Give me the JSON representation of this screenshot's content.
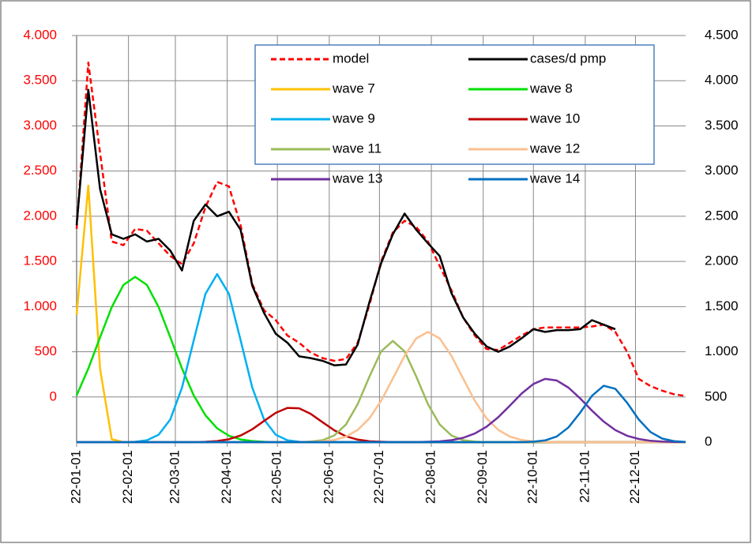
{
  "chart_data": {
    "type": "line",
    "x": [
      0,
      7,
      14,
      21,
      28,
      35,
      42,
      49,
      56,
      63,
      70,
      77,
      84,
      91,
      98,
      105,
      112,
      119,
      126,
      133,
      140,
      147,
      154,
      161,
      168,
      175,
      182,
      189,
      196,
      203,
      210,
      217,
      224,
      231,
      238,
      245,
      252,
      259,
      266,
      273,
      280,
      287,
      294,
      301,
      308,
      315,
      322,
      329,
      336,
      343,
      350,
      357,
      364
    ],
    "xlim": [
      0,
      364
    ],
    "xticks": [
      {
        "value": 0,
        "label": "22-01-01"
      },
      {
        "value": 31,
        "label": "22-02-01"
      },
      {
        "value": 59,
        "label": "22-03-01"
      },
      {
        "value": 90,
        "label": "22-04-01"
      },
      {
        "value": 120,
        "label": "22-05-01"
      },
      {
        "value": 151,
        "label": "22-06-01"
      },
      {
        "value": 181,
        "label": "22-07-01"
      },
      {
        "value": 212,
        "label": "22-08-01"
      },
      {
        "value": 243,
        "label": "22-09-01"
      },
      {
        "value": 273,
        "label": "22-10-01"
      },
      {
        "value": 304,
        "label": "22-11-01"
      },
      {
        "value": 334,
        "label": "22-12-01"
      }
    ],
    "ylim": [
      -500,
      4000
    ],
    "yticks": [
      0,
      500,
      {
        "value": 1000,
        "label": "1.000"
      },
      {
        "value": 1500,
        "label": "1.500"
      },
      {
        "value": 2000,
        "label": "2.000"
      },
      {
        "value": 2500,
        "label": "2.500"
      },
      {
        "value": 3000,
        "label": "3.000"
      },
      {
        "value": 3500,
        "label": "3.500"
      },
      {
        "value": 4000,
        "label": "4.000"
      }
    ],
    "y2lim": [
      0,
      4500
    ],
    "y2ticks": [
      0,
      500,
      {
        "value": 1000,
        "label": "1.000"
      },
      {
        "value": 1500,
        "label": "1.500"
      },
      {
        "value": 2000,
        "label": "2.000"
      },
      {
        "value": 2500,
        "label": "2.500"
      },
      {
        "value": 3000,
        "label": "3.000"
      },
      {
        "value": 3500,
        "label": "3.500"
      },
      {
        "value": 4000,
        "label": "4.000"
      },
      {
        "value": 4500,
        "label": "4.500"
      }
    ],
    "ytick_color": "#ff0000",
    "grid": true,
    "series": [
      {
        "name": "model",
        "color": "#ff0000",
        "dashed": true,
        "values": [
          1860,
          3700,
          2700,
          1720,
          1680,
          1860,
          1840,
          1700,
          1560,
          1470,
          1700,
          2100,
          2380,
          2330,
          1900,
          1250,
          960,
          850,
          680,
          600,
          490,
          430,
          400,
          420,
          600,
          1020,
          1500,
          1820,
          1950,
          1880,
          1720,
          1450,
          1180,
          880,
          680,
          530,
          520,
          600,
          680,
          750,
          770,
          770,
          770,
          770,
          780,
          800,
          720,
          500,
          200,
          120,
          70,
          30,
          10
        ]
      },
      {
        "name": "cases/d pmp",
        "color": "#000000",
        "values": [
          1900,
          3400,
          2300,
          1800,
          1750,
          1800,
          1720,
          1750,
          1620,
          1400,
          1950,
          2130,
          2000,
          2050,
          1850,
          1230,
          930,
          700,
          600,
          450,
          430,
          400,
          350,
          360,
          580,
          1050,
          1480,
          1800,
          2030,
          1850,
          1700,
          1560,
          1150,
          880,
          700,
          560,
          500,
          560,
          650,
          750,
          720,
          740,
          740,
          750,
          850,
          800,
          750,
          null,
          null,
          null,
          null,
          null,
          null
        ]
      },
      {
        "name": "wave 7",
        "color": "#ffc000",
        "axis": "y2",
        "values": [
          1410,
          2840,
          810,
          32,
          0,
          0,
          0,
          0,
          0,
          0,
          0,
          0,
          0,
          0,
          0,
          0,
          0,
          0,
          0,
          0,
          0,
          0,
          0,
          0,
          0,
          0,
          0,
          0,
          0,
          0,
          0,
          0,
          0,
          0,
          0,
          0,
          0,
          0,
          0,
          0,
          0,
          0,
          0,
          0,
          0,
          0,
          0,
          0,
          0,
          0,
          0,
          0,
          0
        ]
      },
      {
        "name": "wave 8",
        "color": "#00e000",
        "axis": "y2",
        "values": [
          516,
          814,
          1160,
          1495,
          1740,
          1830,
          1740,
          1495,
          1160,
          814,
          516,
          297,
          153,
          71,
          30,
          12,
          4,
          0,
          0,
          0,
          0,
          0,
          0,
          0,
          0,
          0,
          0,
          0,
          0,
          0,
          0,
          0,
          0,
          0,
          0,
          0,
          0,
          0,
          0,
          0,
          0,
          0,
          0,
          0,
          0,
          0,
          0,
          0,
          0,
          0,
          0,
          0,
          0
        ]
      },
      {
        "name": "wave 9",
        "color": "#00b0f0",
        "axis": "y2",
        "values": [
          0,
          0,
          0,
          0,
          0,
          4,
          21,
          82,
          252,
          604,
          1128,
          1641,
          1860,
          1641,
          1128,
          604,
          252,
          82,
          21,
          4,
          0,
          0,
          0,
          0,
          0,
          0,
          0,
          0,
          0,
          0,
          0,
          0,
          0,
          0,
          0,
          0,
          0,
          0,
          0,
          0,
          0,
          0,
          0,
          0,
          0,
          0,
          0,
          0,
          0,
          0,
          0,
          0,
          0
        ]
      },
      {
        "name": "wave 10",
        "color": "#c00000",
        "axis": "y2",
        "values": [
          0,
          0,
          0,
          0,
          0,
          0,
          0,
          0,
          0,
          0,
          0,
          4,
          12,
          32,
          73,
          142,
          234,
          324,
          379,
          375,
          312,
          220,
          131,
          65,
          28,
          10,
          4,
          0,
          0,
          0,
          0,
          0,
          0,
          0,
          0,
          0,
          0,
          0,
          0,
          0,
          0,
          0,
          0,
          0,
          0,
          0,
          0,
          0,
          0,
          0,
          0,
          0,
          0
        ]
      },
      {
        "name": "wave 11",
        "color": "#9bbb59",
        "axis": "y2",
        "values": [
          0,
          0,
          0,
          0,
          0,
          0,
          0,
          0,
          0,
          0,
          0,
          0,
          0,
          0,
          0,
          0,
          0,
          0,
          0,
          0,
          6,
          22,
          74,
          196,
          420,
          725,
          1005,
          1120,
          1005,
          725,
          420,
          196,
          74,
          22,
          6,
          0,
          0,
          0,
          0,
          0,
          0,
          0,
          0,
          0,
          0,
          0,
          0,
          0,
          0,
          0,
          0,
          0,
          0
        ]
      },
      {
        "name": "wave 12",
        "color": "#fac090",
        "axis": "y2",
        "values": [
          0,
          0,
          0,
          0,
          0,
          0,
          0,
          0,
          0,
          0,
          0,
          0,
          0,
          0,
          0,
          0,
          0,
          0,
          0,
          0,
          3,
          9,
          24,
          61,
          135,
          264,
          458,
          703,
          955,
          1148,
          1220,
          1148,
          955,
          703,
          458,
          264,
          135,
          61,
          24,
          9,
          3,
          0,
          0,
          0,
          0,
          0,
          0,
          0,
          0,
          0,
          0,
          0,
          0
        ]
      },
      {
        "name": "wave 13",
        "color": "#7030a0",
        "axis": "y2",
        "values": [
          0,
          0,
          0,
          0,
          0,
          0,
          0,
          0,
          0,
          0,
          0,
          0,
          0,
          0,
          0,
          0,
          0,
          0,
          0,
          0,
          0,
          0,
          0,
          0,
          0,
          0,
          0,
          0,
          0,
          0,
          4,
          9,
          22,
          48,
          95,
          170,
          276,
          405,
          538,
          644,
          700,
          682,
          603,
          483,
          349,
          228,
          134,
          71,
          35,
          15,
          6,
          2,
          1
        ]
      },
      {
        "name": "wave 14",
        "color": "#0070c0",
        "axis": "y2",
        "values": [
          0,
          0,
          0,
          0,
          0,
          0,
          0,
          0,
          0,
          0,
          0,
          0,
          0,
          0,
          0,
          0,
          0,
          0,
          0,
          0,
          0,
          0,
          0,
          0,
          0,
          0,
          0,
          0,
          0,
          0,
          0,
          0,
          0,
          0,
          0,
          0,
          0,
          0,
          0,
          5,
          19,
          63,
          163,
          328,
          513,
          624,
          591,
          436,
          250,
          112,
          39,
          11,
          2
        ]
      }
    ]
  }
}
